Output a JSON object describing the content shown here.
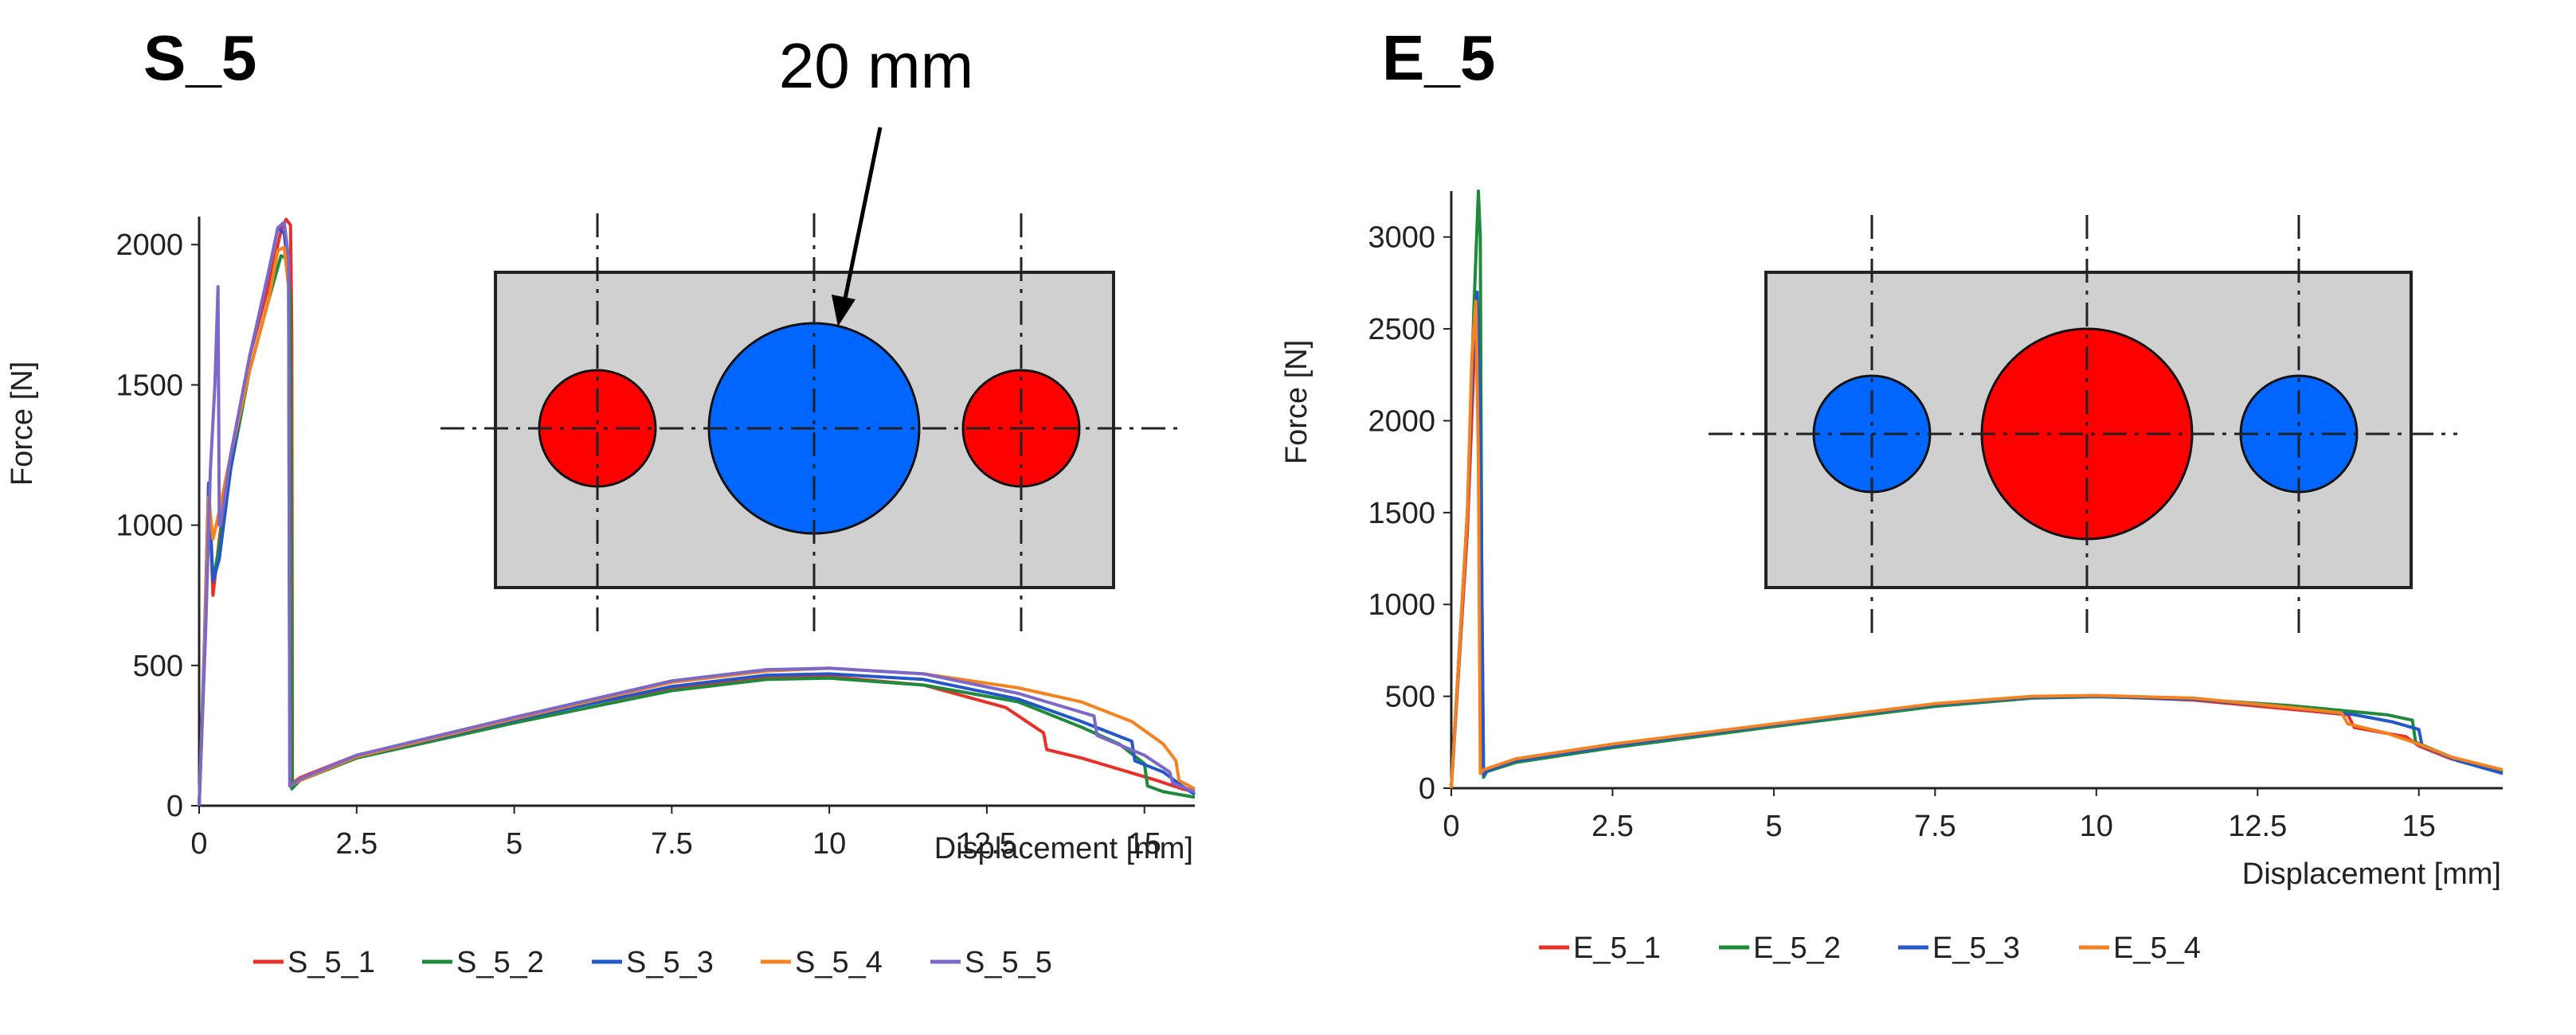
{
  "chart_data": [
    {
      "type": "line",
      "panel_title": "S_5",
      "annotation": "20 mm",
      "xlabel": "Displacement [mm]",
      "ylabel": "Force [N]",
      "xlim": [
        0,
        15.8
      ],
      "ylim": [
        0,
        2100
      ],
      "x_ticks": [
        0,
        2.5,
        5,
        7.5,
        10,
        12.5,
        15
      ],
      "x_tick_labels": [
        "0",
        "2.5",
        "5",
        "7.5",
        "10",
        "12.5",
        "15"
      ],
      "y_ticks": [
        0,
        500,
        1000,
        1500,
        2000
      ],
      "y_tick_labels": [
        "0",
        "500",
        "1000",
        "1500",
        "2000"
      ],
      "grid": false,
      "legend_position": "bottom",
      "inset": {
        "outer_holes_color": "red",
        "center_hole_color": "blue"
      },
      "series": [
        {
          "name": "S_5_1",
          "color": "#e8302a",
          "x": [
            0,
            0.08,
            0.15,
            0.22,
            0.32,
            0.5,
            0.8,
            1.1,
            1.3,
            1.38,
            1.45,
            1.47,
            1.48,
            1.6,
            2.5,
            5,
            7.5,
            9,
            10,
            11.5,
            12.8,
            13.4,
            13.45,
            14,
            14.6,
            15.2,
            15.6,
            15.8
          ],
          "y": [
            0,
            500,
            1150,
            750,
            950,
            1250,
            1600,
            1850,
            2050,
            2090,
            2070,
            1700,
            80,
            100,
            180,
            310,
            420,
            455,
            460,
            430,
            350,
            260,
            200,
            170,
            130,
            90,
            60,
            50
          ]
        },
        {
          "name": "S_5_2",
          "color": "#1f8a3b",
          "x": [
            0,
            0.08,
            0.15,
            0.22,
            0.3,
            0.5,
            0.8,
            1.1,
            1.3,
            1.4,
            1.45,
            1.47,
            1.6,
            2.5,
            5,
            7.5,
            9,
            10,
            11.5,
            13,
            14,
            14.6,
            15.0,
            15.05,
            15.3,
            15.8
          ],
          "y": [
            0,
            500,
            1100,
            800,
            900,
            1200,
            1550,
            1800,
            1960,
            1950,
            1800,
            60,
            90,
            170,
            295,
            410,
            450,
            455,
            430,
            370,
            280,
            220,
            150,
            70,
            50,
            30
          ]
        },
        {
          "name": "S_5_3",
          "color": "#2358c8",
          "x": [
            0,
            0.08,
            0.15,
            0.22,
            0.32,
            0.5,
            0.8,
            1.1,
            1.25,
            1.35,
            1.42,
            1.44,
            1.6,
            2.5,
            5,
            7.5,
            9,
            10,
            11.5,
            13,
            14,
            14.8,
            14.85,
            15.3,
            15.6,
            15.8
          ],
          "y": [
            0,
            550,
            1150,
            800,
            880,
            1200,
            1600,
            1900,
            2060,
            2040,
            1900,
            70,
            90,
            175,
            305,
            425,
            465,
            470,
            450,
            380,
            300,
            230,
            160,
            120,
            70,
            40
          ]
        },
        {
          "name": "S_5_4",
          "color": "#f58220",
          "x": [
            0,
            0.08,
            0.15,
            0.22,
            0.32,
            0.5,
            0.8,
            1.1,
            1.25,
            1.35,
            1.42,
            1.44,
            1.6,
            2.5,
            5,
            7.5,
            9,
            10,
            11.5,
            13,
            14,
            14.8,
            15.3,
            15.5,
            15.55,
            15.8
          ],
          "y": [
            0,
            520,
            1100,
            950,
            1050,
            1250,
            1550,
            1800,
            1980,
            1990,
            1850,
            70,
            90,
            175,
            310,
            440,
            480,
            490,
            470,
            420,
            370,
            300,
            220,
            160,
            90,
            60
          ]
        },
        {
          "name": "S_5_5",
          "color": "#7b68c8",
          "x": [
            0,
            0.1,
            0.18,
            0.25,
            0.3,
            0.32,
            0.34,
            0.5,
            0.8,
            1.1,
            1.25,
            1.35,
            1.42,
            1.44,
            1.6,
            2.5,
            5,
            7.5,
            9,
            10,
            11.5,
            13,
            14.2,
            14.25,
            15,
            15.4,
            15.45,
            15.8
          ],
          "y": [
            0,
            600,
            1200,
            1500,
            1850,
            1000,
            1000,
            1250,
            1600,
            1900,
            2060,
            2080,
            1950,
            70,
            95,
            180,
            315,
            445,
            485,
            490,
            470,
            400,
            320,
            250,
            180,
            120,
            80,
            50
          ]
        }
      ]
    },
    {
      "type": "line",
      "panel_title": "E_5",
      "xlabel": "Displacement [mm]",
      "ylabel": "Force [N]",
      "xlim": [
        0,
        16.3
      ],
      "ylim": [
        0,
        3250
      ],
      "x_ticks": [
        0,
        2.5,
        5,
        7.5,
        10,
        12.5,
        15
      ],
      "x_tick_labels": [
        "0",
        "2.5",
        "5",
        "7.5",
        "10",
        "12.5",
        "15"
      ],
      "y_ticks": [
        0,
        500,
        1000,
        1500,
        2000,
        2500,
        3000
      ],
      "y_tick_labels": [
        "0",
        "500",
        "1000",
        "1500",
        "2000",
        "2500",
        "3000"
      ],
      "grid": false,
      "legend_position": "bottom",
      "inset": {
        "outer_holes_color": "blue",
        "center_hole_color": "red"
      },
      "series": [
        {
          "name": "E_5_1",
          "color": "#e8302a",
          "x": [
            0,
            0.25,
            0.35,
            0.4,
            0.45,
            0.5,
            0.55,
            1,
            2.5,
            5,
            7.5,
            9,
            10,
            11.5,
            13,
            13.9,
            14.0,
            14.8,
            15.0,
            15.5,
            16.3
          ],
          "y": [
            0,
            1400,
            2300,
            2600,
            2000,
            80,
            100,
            150,
            230,
            345,
            455,
            495,
            500,
            480,
            430,
            400,
            330,
            280,
            230,
            160,
            90
          ]
        },
        {
          "name": "E_5_2",
          "color": "#1f8a3b",
          "x": [
            0,
            0.25,
            0.35,
            0.42,
            0.45,
            0.48,
            0.5,
            0.55,
            1,
            2.5,
            5,
            7.5,
            9,
            10,
            11.5,
            13,
            14.5,
            14.9,
            14.95,
            15.5,
            16.3
          ],
          "y": [
            0,
            1500,
            2600,
            3250,
            3000,
            500,
            60,
            90,
            140,
            220,
            335,
            445,
            490,
            498,
            485,
            450,
            400,
            370,
            250,
            170,
            90
          ]
        },
        {
          "name": "E_5_3",
          "color": "#2358c8",
          "x": [
            0,
            0.25,
            0.35,
            0.4,
            0.45,
            0.5,
            0.55,
            1,
            2.5,
            5,
            7.5,
            9,
            10,
            11.5,
            13,
            14,
            14.6,
            15.0,
            15.05,
            15.6,
            16.3
          ],
          "y": [
            0,
            1500,
            2500,
            2700,
            2000,
            70,
            95,
            150,
            230,
            345,
            455,
            495,
            500,
            485,
            440,
            400,
            360,
            320,
            230,
            150,
            80
          ]
        },
        {
          "name": "E_5_4",
          "color": "#f58220",
          "x": [
            0,
            0.25,
            0.32,
            0.38,
            0.42,
            0.45,
            0.5,
            1,
            2.5,
            5,
            7.5,
            9,
            10,
            11.5,
            13,
            13.8,
            13.9,
            14.5,
            15.0,
            15.5,
            16.3
          ],
          "y": [
            0,
            1500,
            2350,
            2650,
            1800,
            80,
            100,
            160,
            240,
            350,
            460,
            500,
            505,
            490,
            440,
            410,
            350,
            300,
            240,
            170,
            100
          ]
        }
      ]
    }
  ]
}
